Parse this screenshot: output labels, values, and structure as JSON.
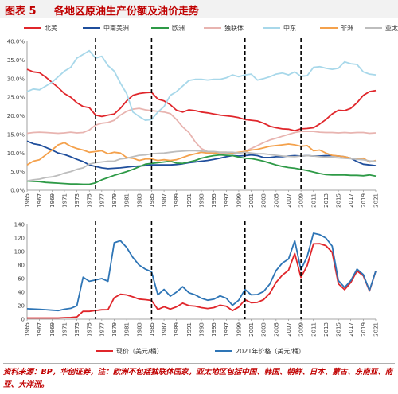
{
  "figure_number": "图表 5",
  "figure_title": "各地区原油生产份额及油价走势",
  "source_note": "资料来源：BP，华创证券，注：欧洲不包括独联体国家，亚太地区包括中国、韩国、朝鲜、日本、蒙古、东南亚、南亚、大洋洲。",
  "chart_data": [
    {
      "type": "line",
      "title": "",
      "xlabel": "",
      "ylabel": "",
      "x": [
        1965,
        1966,
        1967,
        1968,
        1969,
        1970,
        1971,
        1972,
        1973,
        1974,
        1975,
        1976,
        1977,
        1978,
        1979,
        1980,
        1981,
        1982,
        1983,
        1984,
        1985,
        1986,
        1987,
        1988,
        1989,
        1990,
        1991,
        1992,
        1993,
        1994,
        1995,
        1996,
        1997,
        1998,
        1999,
        2000,
        2001,
        2002,
        2003,
        2004,
        2005,
        2006,
        2007,
        2008,
        2009,
        2010,
        2011,
        2012,
        2013,
        2014,
        2015,
        2016,
        2017,
        2018,
        2019,
        2020,
        2021
      ],
      "x_ticks": [
        1965,
        1967,
        1969,
        1971,
        1973,
        1975,
        1977,
        1979,
        1981,
        1983,
        1985,
        1987,
        1989,
        1991,
        1993,
        1995,
        1997,
        1999,
        2001,
        2003,
        2005,
        2007,
        2009,
        2011,
        2013,
        2015,
        2017,
        2019,
        2021
      ],
      "y_ticks": [
        "0.0%",
        "5.0%",
        "10.0%",
        "15.0%",
        "20.0%",
        "25.0%",
        "30.0%",
        "35.0%",
        "40.0%"
      ],
      "ylim": [
        0,
        40
      ],
      "vlines": [
        1976,
        1985,
        2000,
        2009
      ],
      "grid": false,
      "legend_position": "top",
      "series": [
        {
          "name": "北美",
          "color": "#e0262b",
          "values": [
            32.5,
            31.8,
            31.6,
            30.4,
            29.0,
            27.6,
            26.0,
            25.0,
            23.5,
            22.5,
            22.2,
            20.2,
            19.8,
            20.2,
            20.5,
            22.0,
            24.0,
            25.5,
            26.0,
            26.2,
            26.3,
            24.5,
            24.0,
            23.0,
            21.5,
            21.0,
            21.6,
            21.4,
            21.0,
            20.8,
            20.5,
            20.2,
            20.0,
            19.8,
            19.5,
            19.0,
            18.8,
            18.6,
            18.0,
            17.2,
            16.8,
            16.5,
            16.4,
            16.0,
            16.5,
            16.6,
            16.8,
            17.8,
            19.0,
            20.5,
            21.5,
            21.4,
            22.0,
            23.5,
            25.5,
            26.5,
            26.8
          ]
        },
        {
          "name": "中南美洲",
          "color": "#1f4e9c",
          "values": [
            13.2,
            12.5,
            12.2,
            11.5,
            10.8,
            10.0,
            9.6,
            9.0,
            8.3,
            7.7,
            6.8,
            6.4,
            6.0,
            5.8,
            5.9,
            6.0,
            6.2,
            6.4,
            6.5,
            6.6,
            6.8,
            6.8,
            6.8,
            6.8,
            6.9,
            7.1,
            7.4,
            7.6,
            7.8,
            8.0,
            8.3,
            8.6,
            9.0,
            9.3,
            9.2,
            9.3,
            9.5,
            9.3,
            8.8,
            8.8,
            9.0,
            9.0,
            9.2,
            9.3,
            9.2,
            9.3,
            9.2,
            9.2,
            9.3,
            9.3,
            9.2,
            9.0,
            8.6,
            7.7,
            7.0,
            6.8,
            6.6
          ]
        },
        {
          "name": "欧洲",
          "color": "#2e9a47",
          "values": [
            2.5,
            2.4,
            2.3,
            2.1,
            2.0,
            1.9,
            1.8,
            1.7,
            1.7,
            1.6,
            1.6,
            2.0,
            2.8,
            3.4,
            4.0,
            4.5,
            5.0,
            5.6,
            6.3,
            7.0,
            7.2,
            7.4,
            7.6,
            7.8,
            7.3,
            7.2,
            7.6,
            8.0,
            8.6,
            9.0,
            9.3,
            9.5,
            9.4,
            9.3,
            8.9,
            8.6,
            8.5,
            8.2,
            7.8,
            7.3,
            6.8,
            6.4,
            6.1,
            5.9,
            5.6,
            5.3,
            4.9,
            4.5,
            4.2,
            4.1,
            4.1,
            4.1,
            4.0,
            4.0,
            3.9,
            4.1,
            3.8
          ]
        },
        {
          "name": "独联体",
          "color": "#e8b4b0",
          "values": [
            15.3,
            15.5,
            15.6,
            15.5,
            15.4,
            15.3,
            15.4,
            15.6,
            15.4,
            15.5,
            16.2,
            17.5,
            18.0,
            18.2,
            18.8,
            20.2,
            21.2,
            21.8,
            22.0,
            21.6,
            21.4,
            21.2,
            21.0,
            20.6,
            19.0,
            17.0,
            15.5,
            13.0,
            11.2,
            10.4,
            10.2,
            10.0,
            9.9,
            9.8,
            10.0,
            10.5,
            11.2,
            12.0,
            12.8,
            13.5,
            14.0,
            14.5,
            15.0,
            15.5,
            15.8,
            15.8,
            15.8,
            15.6,
            15.5,
            15.5,
            15.4,
            15.5,
            15.4,
            15.5,
            15.5,
            15.3,
            15.4
          ]
        },
        {
          "name": "中东",
          "color": "#a8d8ea",
          "values": [
            26.5,
            27.2,
            27.0,
            28.0,
            29.0,
            30.5,
            32.0,
            33.0,
            35.5,
            36.5,
            37.5,
            35.5,
            36.0,
            33.5,
            32.0,
            28.8,
            26.0,
            21.0,
            19.8,
            18.8,
            19.0,
            21.0,
            22.5,
            25.5,
            26.5,
            28.0,
            29.5,
            29.8,
            29.8,
            29.6,
            29.8,
            29.8,
            30.2,
            31.0,
            30.5,
            31.0,
            31.2,
            29.6,
            30.0,
            30.5,
            31.2,
            31.5,
            31.0,
            31.8,
            30.6,
            30.8,
            33.0,
            33.2,
            32.8,
            32.5,
            32.8,
            34.5,
            34.0,
            33.8,
            31.8,
            31.2,
            31.0
          ]
        },
        {
          "name": "非洲",
          "color": "#f4a14c",
          "values": [
            6.8,
            7.8,
            8.2,
            9.5,
            10.8,
            12.2,
            12.8,
            11.8,
            11.2,
            10.8,
            10.2,
            10.4,
            10.6,
            9.8,
            10.2,
            10.0,
            8.8,
            8.6,
            8.0,
            8.4,
            8.4,
            8.0,
            8.2,
            8.0,
            8.2,
            8.8,
            9.4,
            9.8,
            10.2,
            10.0,
            9.9,
            10.2,
            10.2,
            10.0,
            10.2,
            10.4,
            10.8,
            11.0,
            11.4,
            11.8,
            12.0,
            12.2,
            12.4,
            12.2,
            11.8,
            12.0,
            10.6,
            10.8,
            10.0,
            9.4,
            9.2,
            9.0,
            8.6,
            8.4,
            8.6,
            7.6,
            8.0
          ]
        },
        {
          "name": "亚太",
          "color": "#bdbdbd",
          "values": [
            2.5,
            2.8,
            3.0,
            3.4,
            3.6,
            4.0,
            4.6,
            5.0,
            5.6,
            6.0,
            7.0,
            7.4,
            7.6,
            7.8,
            7.8,
            8.4,
            8.6,
            9.0,
            9.4,
            9.5,
            9.8,
            9.9,
            10.0,
            10.2,
            10.4,
            10.5,
            10.6,
            10.6,
            10.5,
            10.4,
            10.4,
            10.2,
            10.2,
            10.2,
            10.0,
            10.2,
            10.0,
            9.8,
            9.8,
            9.6,
            9.4,
            9.2,
            9.1,
            9.0,
            9.2,
            9.3,
            9.2,
            9.0,
            8.9,
            8.8,
            8.7,
            8.6,
            8.5,
            8.3,
            8.2,
            7.9,
            7.8
          ]
        }
      ]
    },
    {
      "type": "line",
      "title": "",
      "xlabel": "",
      "ylabel": "",
      "x": [
        1965,
        1966,
        1967,
        1968,
        1969,
        1970,
        1971,
        1972,
        1973,
        1974,
        1975,
        1976,
        1977,
        1978,
        1979,
        1980,
        1981,
        1982,
        1983,
        1984,
        1985,
        1986,
        1987,
        1988,
        1989,
        1990,
        1991,
        1992,
        1993,
        1994,
        1995,
        1996,
        1997,
        1998,
        1999,
        2000,
        2001,
        2002,
        2003,
        2004,
        2005,
        2006,
        2007,
        2008,
        2009,
        2010,
        2011,
        2012,
        2013,
        2014,
        2015,
        2016,
        2017,
        2018,
        2019,
        2020,
        2021
      ],
      "x_ticks": [
        1965,
        1967,
        1969,
        1971,
        1973,
        1975,
        1977,
        1979,
        1981,
        1983,
        1985,
        1987,
        1989,
        1991,
        1993,
        1995,
        1997,
        1999,
        2001,
        2003,
        2005,
        2007,
        2009,
        2011,
        2013,
        2015,
        2017,
        2019,
        2021
      ],
      "y_ticks": [
        "0",
        "20",
        "40",
        "60",
        "80",
        "100",
        "120",
        "140"
      ],
      "ylim": [
        0,
        140
      ],
      "vlines": [
        1976,
        1985,
        2000,
        2009
      ],
      "grid": false,
      "legend_position": "bottom",
      "series": [
        {
          "name": "现价（美元/桶）",
          "color": "#e0262b",
          "values": [
            1.8,
            1.8,
            1.8,
            1.8,
            1.8,
            1.8,
            2.2,
            2.5,
            3.3,
            11.6,
            11.5,
            12.8,
            13.9,
            14.0,
            31.6,
            36.8,
            35.9,
            32.9,
            29.6,
            28.8,
            27.6,
            14.4,
            18.4,
            14.9,
            18.2,
            23.7,
            20.0,
            19.3,
            17.0,
            15.8,
            17.0,
            20.7,
            19.1,
            12.7,
            17.9,
            28.7,
            24.4,
            25.0,
            28.8,
            38.3,
            54.5,
            65.1,
            72.4,
            97.3,
            61.7,
            79.5,
            111.3,
            111.7,
            108.7,
            98.9,
            52.4,
            43.7,
            54.2,
            71.3,
            64.2,
            41.8,
            70.9
          ]
        },
        {
          "name": "2021年价格（美元/桶）",
          "color": "#2e75b6",
          "values": [
            15.4,
            15.0,
            14.6,
            14.0,
            13.3,
            12.7,
            14.7,
            16.0,
            19.8,
            62.0,
            56.0,
            58.0,
            60.0,
            56.0,
            113.0,
            116.0,
            106.0,
            91.0,
            80.0,
            74.0,
            70.0,
            36.0,
            44.0,
            34.0,
            40.0,
            48.0,
            39.0,
            36.0,
            31.0,
            28.0,
            29.5,
            34.5,
            31.0,
            20.5,
            28.0,
            44.0,
            36.0,
            36.5,
            41.0,
            52.0,
            72.0,
            83.0,
            89.0,
            116.0,
            73.0,
            93.0,
            127.0,
            125.0,
            120.0,
            108.0,
            57.0,
            47.0,
            57.0,
            74.0,
            66.0,
            42.5,
            70.9
          ]
        }
      ]
    }
  ]
}
